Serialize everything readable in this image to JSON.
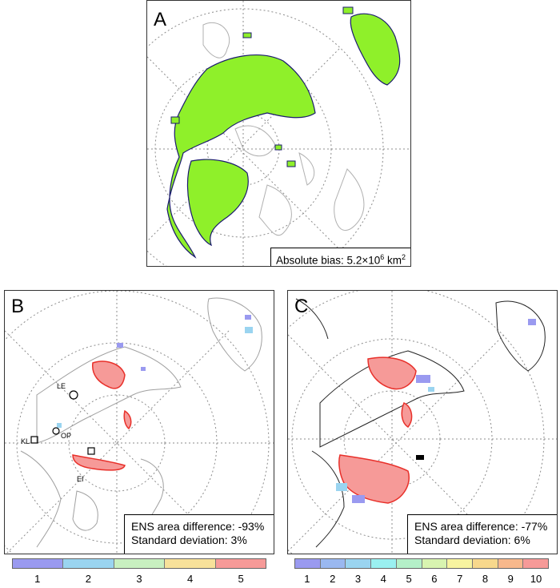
{
  "panels": {
    "a": {
      "label": "A",
      "annotation": {
        "prefix": "Absolute bias: 5.2×10",
        "exp": "6",
        "unit": " km",
        "unit_exp": "2"
      }
    },
    "b": {
      "label": "B",
      "annotation_line1": "ENS area difference: -93%",
      "annotation_line2": "Standard deviation: 3%",
      "sites": [
        {
          "code": "LE",
          "marker": "circle"
        },
        {
          "code": "OP",
          "marker": "circle"
        },
        {
          "code": "KL",
          "marker": "square"
        },
        {
          "code": "EI",
          "marker": "square"
        }
      ]
    },
    "c": {
      "label": "C",
      "annotation_line1": "ENS area difference: -77%",
      "annotation_line2": "Standard deviation: 6%"
    }
  },
  "legend_b": {
    "ticks": [
      "1",
      "2",
      "3",
      "4",
      "5"
    ],
    "colors": [
      "#9a9af0",
      "#9ad4f0",
      "#c8f0c0",
      "#f7e19a",
      "#f69a98"
    ]
  },
  "legend_c": {
    "ticks": [
      "1",
      "2",
      "3",
      "4",
      "5",
      "6",
      "7",
      "8",
      "9",
      "10"
    ],
    "colors": [
      "#9a9af0",
      "#9ab8f0",
      "#9ad4f0",
      "#9af0f0",
      "#b4f0c8",
      "#d8f4b0",
      "#f7f4a0",
      "#f7d88c",
      "#f7b88c",
      "#f69a98"
    ]
  },
  "map_colors": {
    "land_fill": "#8ff02a",
    "outline": "#1a1a6e",
    "coast": "#b0b0b0",
    "grid": "#8c8c8c",
    "hotspot": "#e8302a",
    "hotspot_fill": "#f7a0a0"
  }
}
